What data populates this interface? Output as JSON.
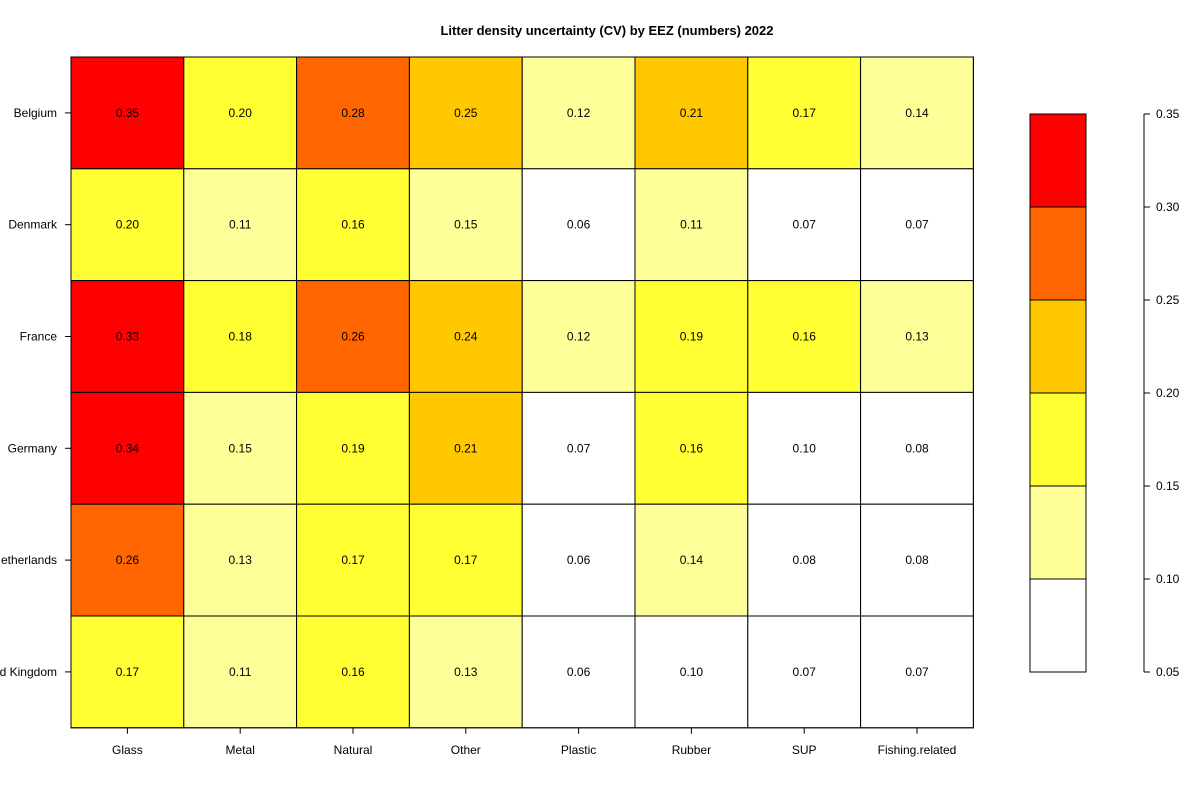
{
  "chart_data": {
    "type": "heatmap",
    "title": "Litter density uncertainty (CV) by EEZ (numbers) 2022",
    "xlabel": "",
    "ylabel": "",
    "columns": [
      "Glass",
      "Metal",
      "Natural",
      "Other",
      "Plastic",
      "Rubber",
      "SUP",
      "Fishing.related"
    ],
    "rows": [
      "Belgium",
      "Denmark",
      "France",
      "Germany",
      "Netherlands",
      "United Kingdom"
    ],
    "values": [
      [
        0.35,
        0.2,
        0.28,
        0.25,
        0.12,
        0.21,
        0.17,
        0.14
      ],
      [
        0.2,
        0.11,
        0.16,
        0.15,
        0.06,
        0.11,
        0.07,
        0.07
      ],
      [
        0.33,
        0.18,
        0.26,
        0.24,
        0.12,
        0.19,
        0.16,
        0.13
      ],
      [
        0.34,
        0.15,
        0.19,
        0.21,
        0.07,
        0.16,
        0.1,
        0.08
      ],
      [
        0.26,
        0.13,
        0.17,
        0.17,
        0.06,
        0.14,
        0.08,
        0.08
      ],
      [
        0.17,
        0.11,
        0.16,
        0.13,
        0.06,
        0.1,
        0.07,
        0.07
      ]
    ],
    "value_format_decimals": 2,
    "legend": {
      "placement": "right",
      "breaks": [
        0.05,
        0.1,
        0.15,
        0.2,
        0.25,
        0.3,
        0.35
      ],
      "tick_labels": [
        "0.05",
        "0.10",
        "0.15",
        "0.20",
        "0.25",
        "0.30",
        "0.35"
      ],
      "colors": [
        "#ffffff",
        "#ffff99",
        "#ffff33",
        "#ffc800",
        "#ff6600",
        "#ff0000"
      ]
    },
    "grid": false
  }
}
